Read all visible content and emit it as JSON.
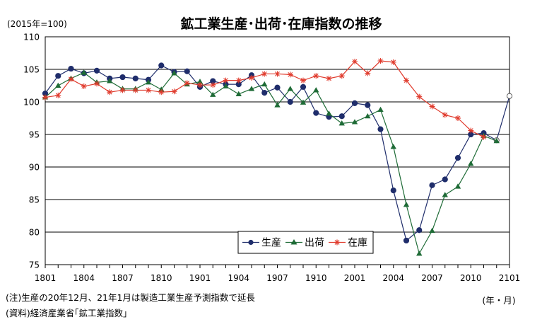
{
  "chart_data": {
    "type": "line",
    "title": "鉱工業生産･出荷･在庫指数の推移",
    "unit_label": "(2015年=100)",
    "x_unit_label": "(年・月)",
    "ylim": [
      75,
      110
    ],
    "y_ticks": [
      "75",
      "80",
      "85",
      "90",
      "95",
      "100",
      "105",
      "110"
    ],
    "x_tick_labels": [
      "1801",
      "1804",
      "1807",
      "1810",
      "1901",
      "1904",
      "1907",
      "1910",
      "2001",
      "2004",
      "2007",
      "2010",
      "2101"
    ],
    "grid": true,
    "legend_position": "bottom-center",
    "series": [
      {
        "name": "生産",
        "color": "#1f2d6b",
        "marker": "circle",
        "values": [
          101.3,
          104.0,
          105.1,
          104.4,
          104.8,
          103.6,
          103.8,
          103.6,
          103.4,
          105.6,
          104.6,
          104.7,
          102.3,
          103.2,
          102.7,
          102.7,
          104.1,
          101.4,
          102.2,
          100.0,
          102.3,
          98.3,
          97.7,
          97.8,
          99.8,
          99.5,
          95.8,
          86.4,
          78.7,
          80.3,
          87.2,
          88.1,
          91.4,
          95.0,
          95.2,
          94.1,
          100.9
        ],
        "forecast_from_index": 35
      },
      {
        "name": "出荷",
        "color": "#1e6b36",
        "marker": "triangle",
        "values": [
          100.7,
          102.5,
          103.6,
          104.5,
          103.0,
          103.2,
          102.0,
          102.0,
          103.0,
          101.9,
          104.4,
          102.7,
          103.1,
          101.1,
          102.4,
          101.2,
          102.0,
          102.7,
          99.5,
          102.0,
          99.9,
          101.8,
          98.2,
          96.7,
          96.9,
          97.8,
          98.8,
          93.1,
          84.2,
          76.7,
          80.2,
          85.7,
          87.0,
          90.5,
          94.8,
          94.0
        ]
      },
      {
        "name": "在庫",
        "color": "#e03a2c",
        "marker": "asterisk",
        "values": [
          100.7,
          101.0,
          103.5,
          102.4,
          102.8,
          101.5,
          101.8,
          101.8,
          101.8,
          101.5,
          101.6,
          102.9,
          102.6,
          102.6,
          103.3,
          103.3,
          103.7,
          104.3,
          104.3,
          104.2,
          103.3,
          104.0,
          103.6,
          104.0,
          106.2,
          104.4,
          106.3,
          106.1,
          103.3,
          100.8,
          99.3,
          98.0,
          97.5,
          95.6,
          94.6
        ]
      }
    ],
    "notes": [
      "(注)生産の20年12月、21年1月は製造工業生産予測指数で延長",
      "(資料)経済産業省｢鉱工業指数｣"
    ]
  }
}
